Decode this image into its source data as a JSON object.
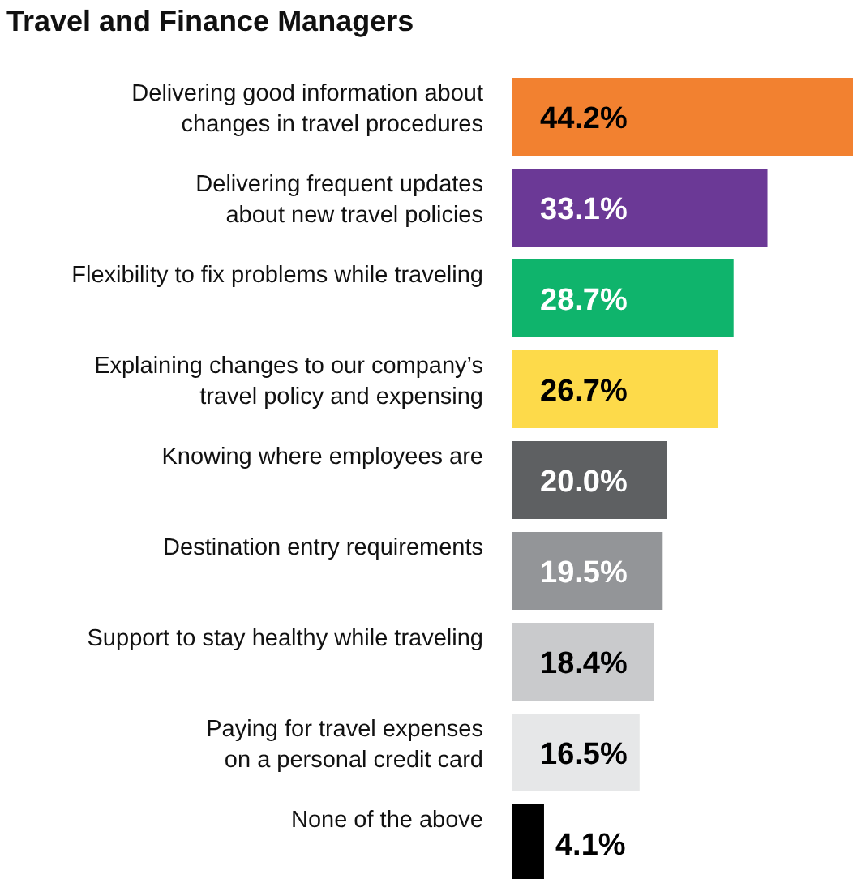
{
  "chart_data": {
    "type": "bar",
    "orientation": "horizontal",
    "title": "Travel and Finance Managers",
    "relative": false,
    "categories": [
      "Delivering good information about changes in travel procedures",
      "Delivering frequent updates about new travel policies",
      "Flexibility to fix problems while traveling",
      "Explaining changes to our company’s travel policy and expensing",
      "Knowing where employees are",
      "Destination entry requirements",
      "Support to stay healthy while traveling",
      "Paying for travel expenses on a personal credit card",
      "None of the above"
    ],
    "values": [
      44.2,
      33.1,
      28.7,
      26.7,
      20.0,
      19.5,
      18.4,
      16.5,
      4.1
    ],
    "value_labels": [
      "44.2%",
      "33.1%",
      "28.7%",
      "26.7%",
      "20.0%",
      "19.5%",
      "18.4%",
      "16.5%",
      "4.1%"
    ],
    "colors": [
      "#f28130",
      "#6b3996",
      "#0fb46c",
      "#fdda4a",
      "#5e6062",
      "#939598",
      "#c9cacc",
      "#e6e7e8",
      "#000000"
    ]
  }
}
